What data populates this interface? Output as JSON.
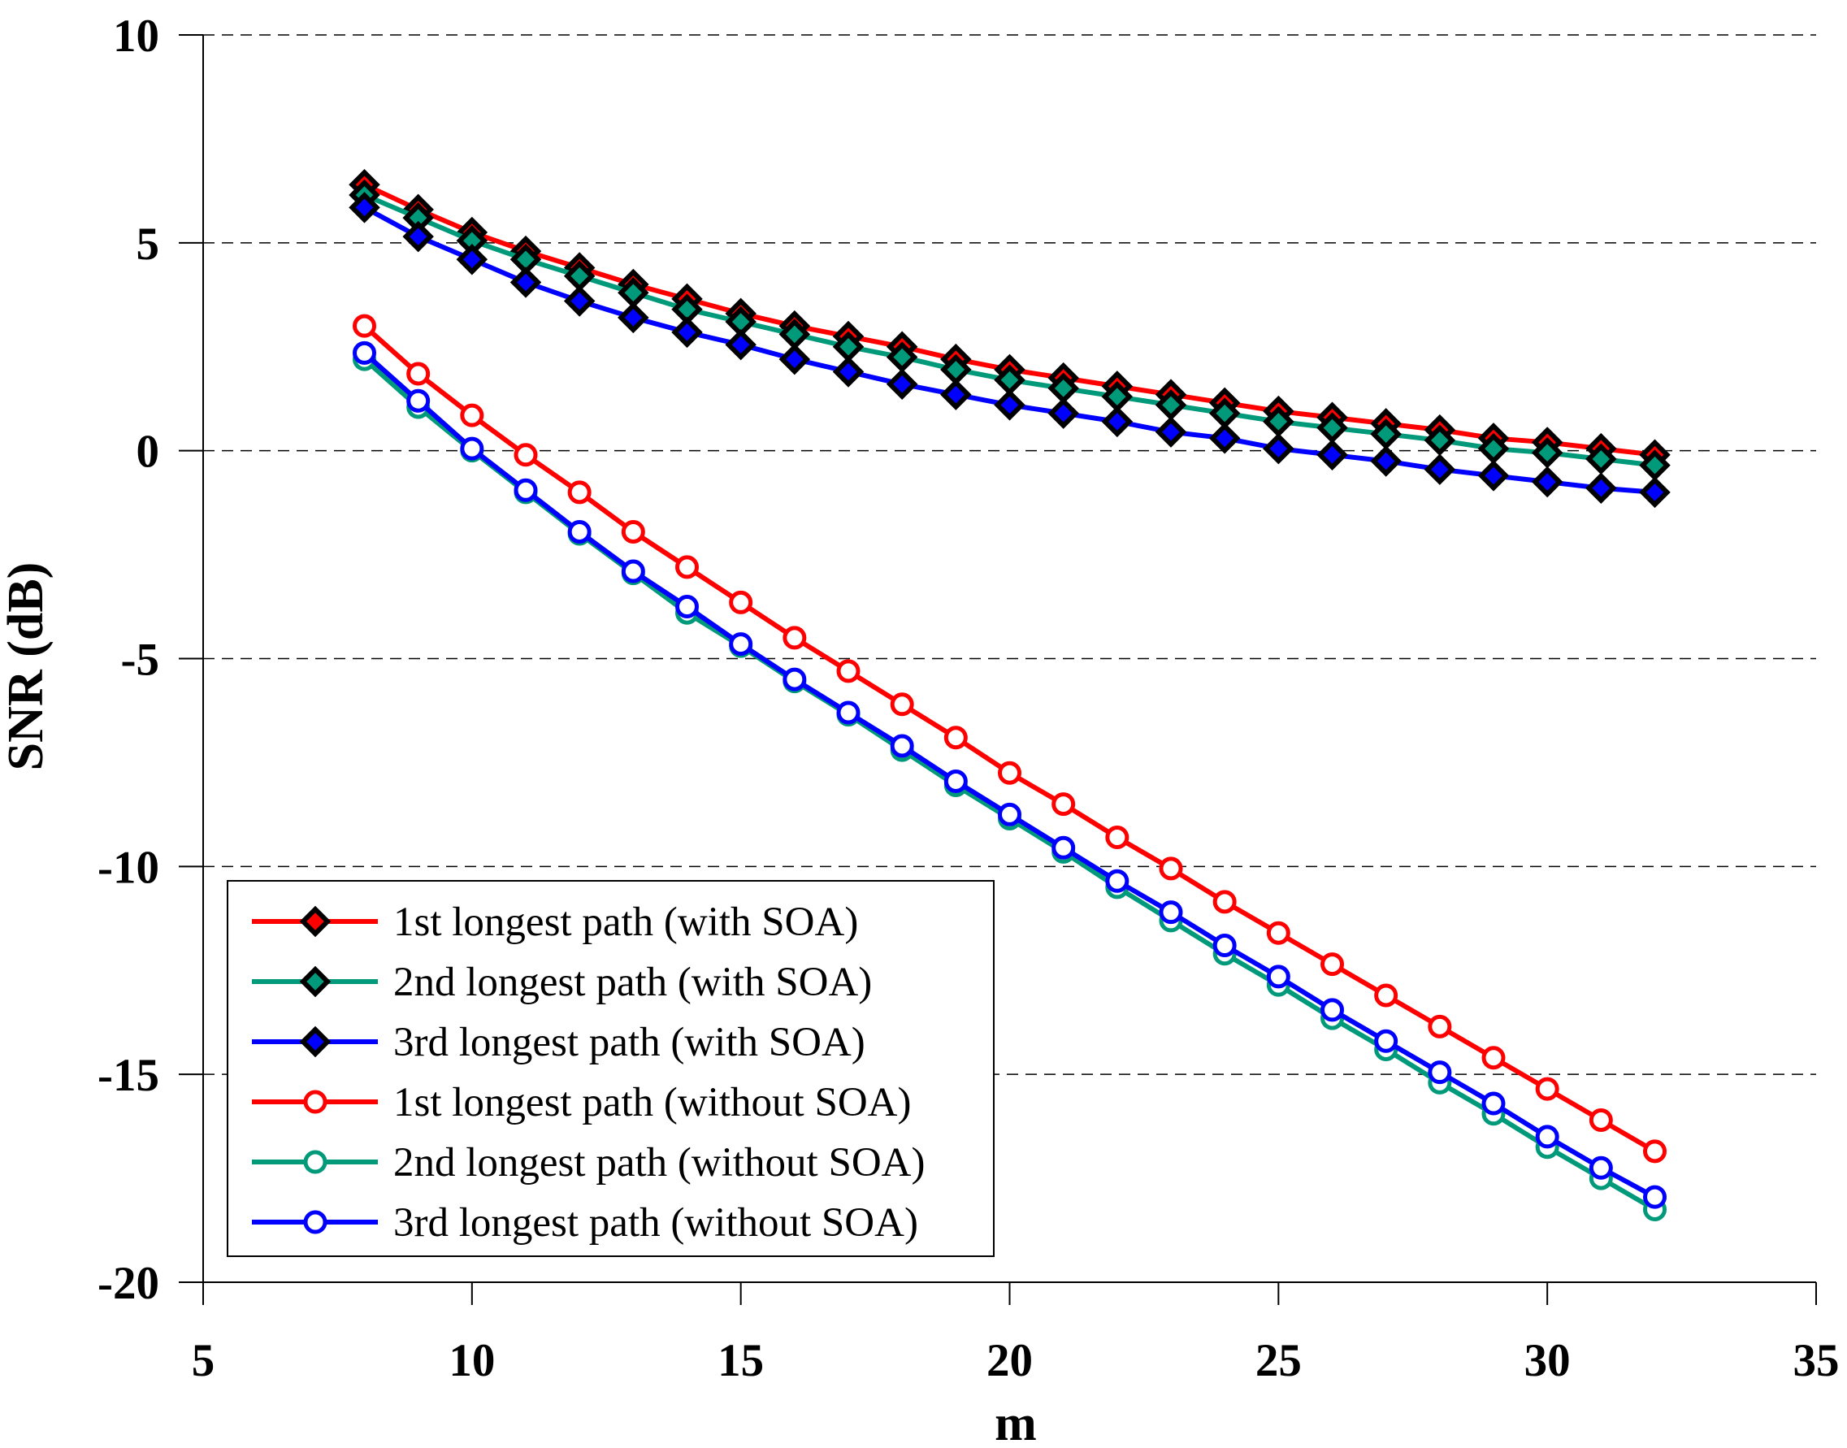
{
  "chart_data": {
    "type": "line",
    "title": "",
    "xlabel": "m",
    "ylabel": "SNR (dB)",
    "xlim": [
      5,
      35
    ],
    "ylim": [
      -20,
      10
    ],
    "xticks": [
      5,
      10,
      15,
      20,
      25,
      30,
      35
    ],
    "yticks": [
      -20,
      -15,
      -10,
      -5,
      0,
      5,
      10
    ],
    "xtick_labels": [
      "5",
      "10",
      "15",
      "20",
      "25",
      "30",
      "35"
    ],
    "ytick_labels": [
      "-20",
      "-15",
      "-10",
      "-5",
      "0",
      "5",
      "10"
    ],
    "grid": "horizontal dashed",
    "legend_position": "bottom-left",
    "x": [
      8,
      9,
      10,
      11,
      12,
      13,
      14,
      15,
      16,
      17,
      18,
      19,
      20,
      21,
      22,
      23,
      24,
      25,
      26,
      27,
      28,
      29,
      30,
      31,
      32
    ],
    "series": [
      {
        "name": "1st longest path (with SOA)",
        "color": "#ff0000",
        "marker": "diamond",
        "values": [
          6.4,
          5.8,
          5.25,
          4.8,
          4.4,
          4.0,
          3.65,
          3.3,
          3.0,
          2.75,
          2.5,
          2.2,
          1.95,
          1.75,
          1.55,
          1.35,
          1.15,
          0.95,
          0.8,
          0.65,
          0.5,
          0.3,
          0.2,
          0.05,
          -0.1
        ]
      },
      {
        "name": "2nd longest path (with SOA)",
        "color": "#009a7a",
        "marker": "diamond",
        "values": [
          6.15,
          5.6,
          5.05,
          4.6,
          4.2,
          3.8,
          3.4,
          3.1,
          2.8,
          2.5,
          2.25,
          1.95,
          1.7,
          1.5,
          1.3,
          1.1,
          0.9,
          0.7,
          0.55,
          0.4,
          0.25,
          0.05,
          -0.05,
          -0.2,
          -0.35
        ]
      },
      {
        "name": "3rd longest path (with SOA)",
        "color": "#0000ff",
        "marker": "diamond",
        "values": [
          5.85,
          5.15,
          4.6,
          4.05,
          3.6,
          3.2,
          2.85,
          2.55,
          2.2,
          1.9,
          1.6,
          1.35,
          1.1,
          0.9,
          0.7,
          0.45,
          0.3,
          0.05,
          -0.1,
          -0.25,
          -0.45,
          -0.6,
          -0.75,
          -0.9,
          -1.0
        ]
      },
      {
        "name": "1st longest path (without SOA)",
        "color": "#ff0000",
        "marker": "circle",
        "values": [
          3.0,
          1.85,
          0.85,
          -0.1,
          -1.0,
          -1.95,
          -2.8,
          -3.65,
          -4.5,
          -5.3,
          -6.1,
          -6.9,
          -7.75,
          -8.5,
          -9.3,
          -10.05,
          -10.85,
          -11.6,
          -12.35,
          -13.1,
          -13.85,
          -14.6,
          -15.35,
          -16.1,
          -16.85
        ]
      },
      {
        "name": "2nd longest path (without SOA)",
        "color": "#009a7a",
        "marker": "circle",
        "values": [
          2.2,
          1.05,
          0.0,
          -1.0,
          -2.0,
          -2.95,
          -3.9,
          -4.7,
          -5.55,
          -6.35,
          -7.2,
          -8.05,
          -8.85,
          -9.65,
          -10.5,
          -11.3,
          -12.1,
          -12.85,
          -13.65,
          -14.4,
          -15.2,
          -15.95,
          -16.75,
          -17.5,
          -18.25
        ]
      },
      {
        "name": "3rd longest path (without SOA)",
        "color": "#0000ff",
        "marker": "circle",
        "values": [
          2.35,
          1.2,
          0.05,
          -0.95,
          -1.95,
          -2.9,
          -3.75,
          -4.65,
          -5.5,
          -6.3,
          -7.1,
          -7.95,
          -8.75,
          -9.55,
          -10.35,
          -11.1,
          -11.9,
          -12.65,
          -13.45,
          -14.2,
          -14.95,
          -15.7,
          -16.5,
          -17.25,
          -17.95
        ]
      }
    ]
  }
}
